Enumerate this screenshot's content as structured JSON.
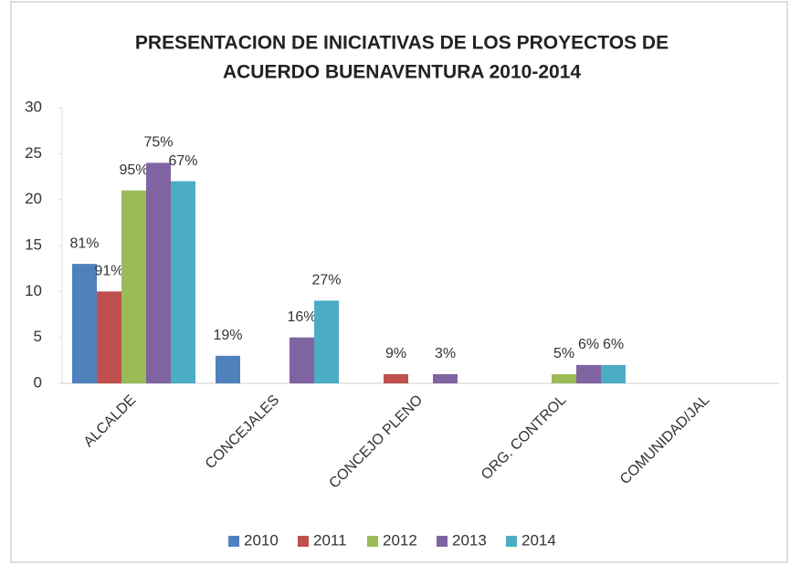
{
  "chart_data": {
    "type": "bar",
    "title": [
      "PRESENTACION DE INICIATIVAS DE LOS PROYECTOS DE",
      "ACUERDO  BUENAVENTURA 2010-2014"
    ],
    "categories": [
      "ALCALDE",
      "CONCEJALES",
      "CONCEJO PLENO",
      "ORG. CONTROL",
      "COMUNIDAD/JAL"
    ],
    "series": [
      {
        "name": "2010",
        "color": "#4f81bd",
        "values": [
          13,
          3,
          0,
          0,
          0
        ],
        "value_labels": [
          "81%",
          "19%",
          null,
          null,
          null
        ]
      },
      {
        "name": "2011",
        "color": "#c0504d",
        "values": [
          10,
          0,
          1,
          0,
          0
        ],
        "value_labels": [
          "91%",
          null,
          "9%",
          null,
          null
        ]
      },
      {
        "name": "2012",
        "color": "#9bbb59",
        "values": [
          21,
          0,
          0,
          1,
          0
        ],
        "value_labels": [
          "95%",
          null,
          null,
          "5%",
          null
        ]
      },
      {
        "name": "2013",
        "color": "#8064a2",
        "values": [
          24,
          5,
          1,
          2,
          0
        ],
        "value_labels": [
          "75%",
          "16%",
          "3%",
          "6%",
          null
        ]
      },
      {
        "name": "2014",
        "color": "#4bacc6",
        "values": [
          22,
          9,
          0,
          2,
          0
        ],
        "value_labels": [
          "67%",
          "27%",
          null,
          "6%",
          null
        ]
      }
    ],
    "ylim": [
      0,
      30
    ],
    "yticks": [
      0,
      5,
      10,
      15,
      20,
      25,
      30
    ],
    "legend": "bottom"
  }
}
